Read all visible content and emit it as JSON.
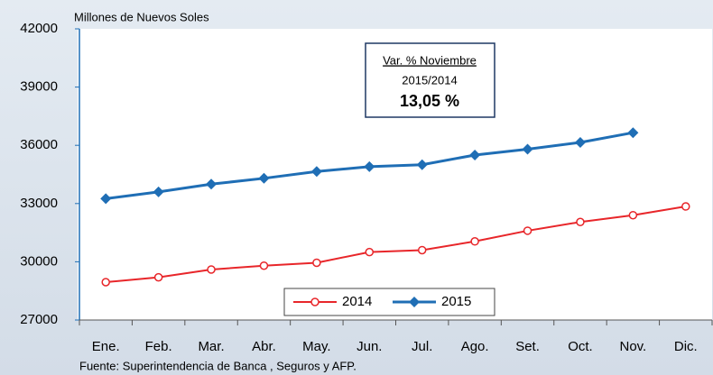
{
  "chart_data": {
    "type": "line",
    "y_axis_label": "Millones de Nuevos Soles",
    "source": "Fuente: Superintendencia de Banca , Seguros y AFP.",
    "annotation": {
      "title": "Var. % Noviembre",
      "period": "2015/2014",
      "value": "13,05 %"
    },
    "categories": [
      "Ene.",
      "Feb.",
      "Mar.",
      "Abr.",
      "May.",
      "Jun.",
      "Jul.",
      "Ago.",
      "Set.",
      "Oct.",
      "Nov.",
      "Dic."
    ],
    "series": [
      {
        "name": "2014",
        "color": "#e8262a",
        "marker": "circle",
        "values": [
          28950,
          29200,
          29600,
          29800,
          29950,
          30500,
          30600,
          31050,
          31600,
          32050,
          32400,
          32850
        ]
      },
      {
        "name": "2015",
        "color": "#1f6eb5",
        "marker": "diamond",
        "values": [
          33250,
          33600,
          34000,
          34300,
          34650,
          34900,
          35000,
          35500,
          35800,
          36150,
          36650,
          null
        ]
      }
    ],
    "ylim": [
      27000,
      42000
    ],
    "yticks": [
      27000,
      30000,
      33000,
      36000,
      39000,
      42000
    ],
    "legend": "bottom"
  }
}
